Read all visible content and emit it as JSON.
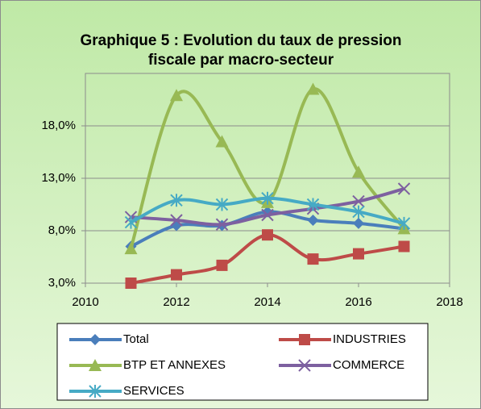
{
  "chart_data": {
    "type": "line",
    "title": "Graphique 5 : Evolution du taux de pression fiscale par macro-secteur",
    "x": [
      2011,
      2012,
      2013,
      2014,
      2015,
      2016,
      2017
    ],
    "xlim": [
      2010,
      2018
    ],
    "xticks": [
      2010,
      2012,
      2014,
      2016,
      2018
    ],
    "ylim": [
      3,
      23
    ],
    "yticks": [
      {
        "value": 3,
        "label": "3,0%"
      },
      {
        "value": 8,
        "label": "8,0%"
      },
      {
        "value": 13,
        "label": "13,0%"
      },
      {
        "value": 18,
        "label": "18,0%"
      }
    ],
    "grid": true,
    "smooth": true,
    "legend": "bottom",
    "series": [
      {
        "name": "Total",
        "color": "#4a7ebb",
        "values": [
          6.5,
          8.5,
          8.5,
          9.8,
          9.0,
          8.7,
          8.2
        ]
      },
      {
        "name": "INDUSTRIES",
        "color": "#be4b48",
        "values": [
          3.0,
          3.8,
          4.7,
          7.6,
          5.3,
          5.8,
          6.5
        ]
      },
      {
        "name": "BTP ET ANNEXES",
        "color": "#98b954",
        "values": [
          6.3,
          20.9,
          16.5,
          10.7,
          21.5,
          13.6,
          8.2
        ]
      },
      {
        "name": "COMMERCE",
        "color": "#7d60a0",
        "values": [
          9.3,
          9.0,
          8.6,
          9.5,
          10.1,
          10.8,
          12.0
        ]
      },
      {
        "name": "SERVICES",
        "color": "#46aac5",
        "values": [
          8.8,
          10.9,
          10.5,
          11.1,
          10.5,
          9.8,
          8.7
        ]
      }
    ]
  }
}
